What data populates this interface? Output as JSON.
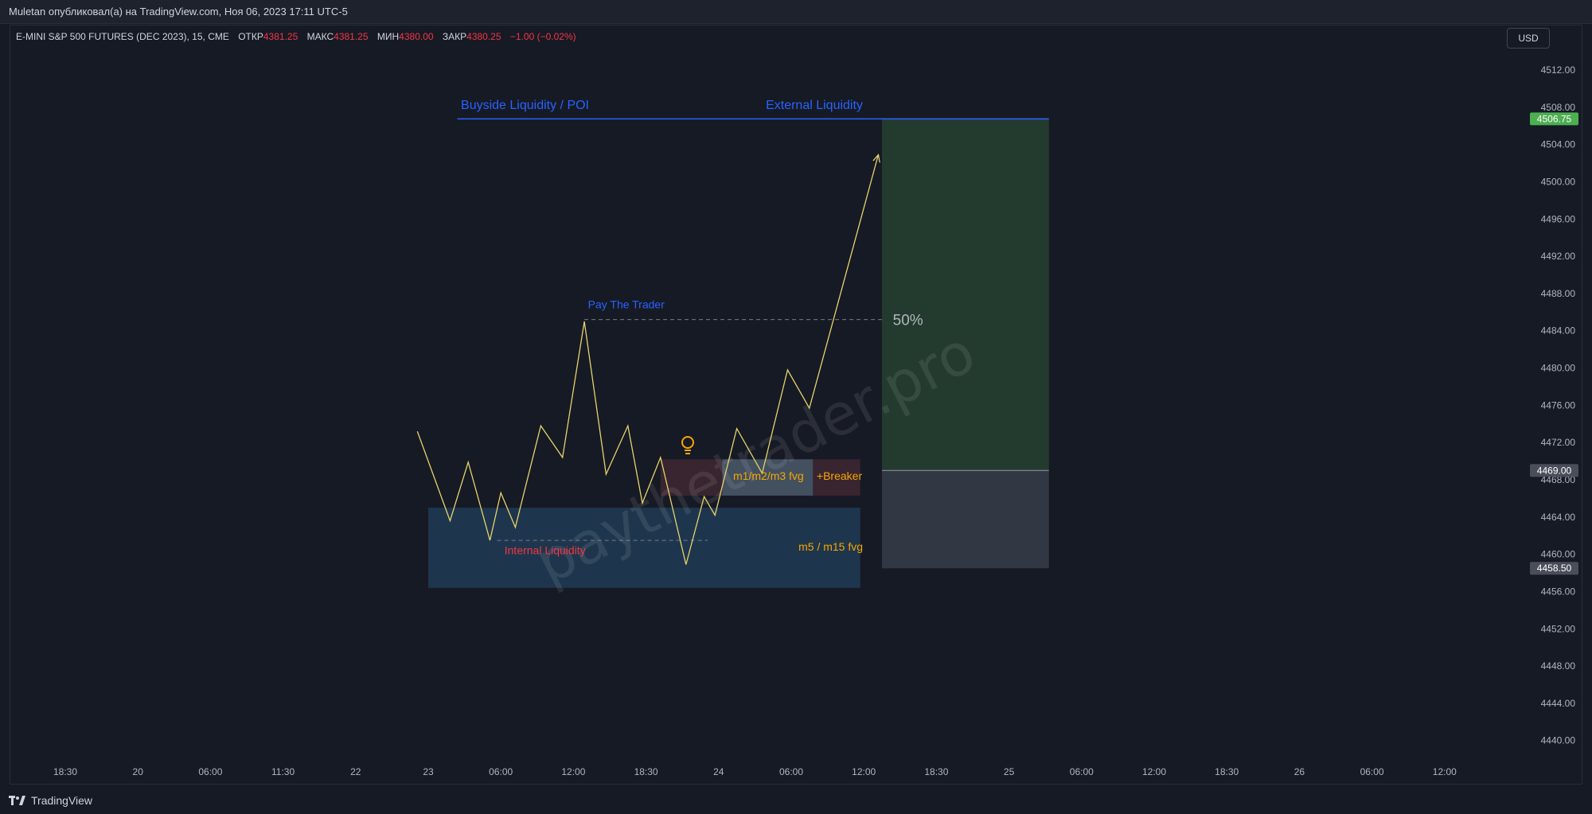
{
  "header": {
    "publisher_line": "Muletan опубликовал(а) на TradingView.com, Ноя 06, 2023 17:11 UTC-5"
  },
  "legend": {
    "symbol": "E-MINI S&P 500 FUTURES (DEC 2023), 15, CME",
    "open_label": "ОТКР",
    "open_value": "4381.25",
    "high_label": "МАКС",
    "high_value": "4381.25",
    "low_label": "МИН",
    "low_value": "4380.00",
    "close_label": "ЗАКР",
    "close_value": "4380.25",
    "change": "−1.00 (−0.02%)"
  },
  "currency_button": "USD",
  "footer": {
    "brand": "TradingView"
  },
  "watermark": "paythetrader.pro",
  "colors": {
    "background": "#161a25",
    "price_line": "#e6d36b",
    "down_value": "#f23645",
    "annotation_blue": "#2962ff",
    "annotation_orange": "#f7a600",
    "target_zone": "#233b2f",
    "stop_zone": "#323744",
    "fvg_zone": "#1f3a52"
  },
  "chart_data": {
    "type": "line",
    "x_ticks": [
      "18:30",
      "20",
      "06:00",
      "11:30",
      "22",
      "23",
      "06:00",
      "12:00",
      "18:30",
      "24",
      "06:00",
      "12:00",
      "18:30",
      "25",
      "06:00",
      "12:00",
      "18:30",
      "26",
      "06:00",
      "12:00"
    ],
    "y_ticks": [
      4512.0,
      4508.0,
      4504.0,
      4500.0,
      4496.0,
      4492.0,
      4488.0,
      4484.0,
      4480.0,
      4476.0,
      4472.0,
      4468.0,
      4464.0,
      4460.0,
      4456.0,
      4452.0,
      4448.0,
      4444.0,
      4440.0
    ],
    "ylim": [
      4437.5,
      4515.5
    ],
    "price_labels": [
      {
        "value": 4506.75,
        "text": "4506.75",
        "color": "#4caf50"
      },
      {
        "value": 4469.0,
        "text": "4469.00",
        "color": "#4a4e5a"
      },
      {
        "value": 4458.5,
        "text": "4458.50",
        "color": "#4a4e5a"
      }
    ],
    "series": [
      {
        "x_units": "x-axis tick index",
        "points": [
          [
            4.85,
            4473.2
          ],
          [
            5.3,
            4463.6
          ],
          [
            5.55,
            4469.9
          ],
          [
            5.85,
            4461.5
          ],
          [
            6.0,
            4466.6
          ],
          [
            6.2,
            4462.9
          ],
          [
            6.55,
            4473.8
          ],
          [
            6.85,
            4470.4
          ],
          [
            7.15,
            4485.0
          ],
          [
            7.45,
            4468.6
          ],
          [
            7.75,
            4473.8
          ],
          [
            7.95,
            4465.5
          ],
          [
            8.2,
            4470.4
          ],
          [
            8.55,
            4458.9
          ],
          [
            8.8,
            4466.2
          ],
          [
            8.95,
            4464.2
          ],
          [
            9.25,
            4473.5
          ],
          [
            9.6,
            4468.7
          ],
          [
            9.95,
            4479.8
          ],
          [
            10.25,
            4475.7
          ],
          [
            11.2,
            4502.9
          ]
        ]
      }
    ],
    "zones": [
      {
        "name": "m5-m15-fvg",
        "x": [
          5.0,
          10.95
        ],
        "y": [
          4456.4,
          4465.0
        ]
      },
      {
        "name": "m1-m2-m3-fvg-dark",
        "x": [
          8.2,
          9.05
        ],
        "y": [
          4466.3,
          4470.2
        ]
      },
      {
        "name": "m1-m2-m3-fvg",
        "x": [
          9.05,
          10.3
        ],
        "y": [
          4466.3,
          4470.2
        ]
      },
      {
        "name": "breaker",
        "x": [
          10.3,
          10.95
        ],
        "y": [
          4466.3,
          4470.2
        ]
      },
      {
        "name": "target",
        "x": [
          11.25,
          13.55
        ],
        "y": [
          4469.0,
          4506.75
        ]
      },
      {
        "name": "stop",
        "x": [
          11.25,
          13.55
        ],
        "y": [
          4458.5,
          4469.0
        ]
      }
    ],
    "lines": [
      {
        "name": "buyside-liquidity-line",
        "x": [
          5.4,
          13.55
        ],
        "y": 4506.75,
        "style": "solid",
        "color": "#2962ff"
      },
      {
        "name": "pay-the-trader-line",
        "x": [
          7.15,
          11.25
        ],
        "y": 4485.2,
        "style": "dashed",
        "color": "#787b86"
      },
      {
        "name": "internal-liquidity-line",
        "x": [
          5.95,
          8.85
        ],
        "y": 4461.5,
        "style": "dashed",
        "color": "#787b86"
      }
    ],
    "annotations": [
      {
        "text": "Buyside Liquidity / POI",
        "x": 5.45,
        "y": 4507.8,
        "color": "#2962ff"
      },
      {
        "text": "External Liquidity",
        "x": 9.65,
        "y": 4507.8,
        "color": "#2962ff"
      },
      {
        "text": "Pay The Trader",
        "x": 7.2,
        "y": 4486.4,
        "color": "#2962ff"
      },
      {
        "text": "50%",
        "x": 11.4,
        "y": 4484.6,
        "color": "#b2b5be"
      },
      {
        "text": "m1/m2/m3 fvg",
        "x": 9.2,
        "y": 4468.0,
        "color": "#f7a600"
      },
      {
        "text": "+Breaker",
        "x": 10.35,
        "y": 4468.0,
        "color": "#f7a600"
      },
      {
        "text": "m5 / m15 fvg",
        "x": 10.1,
        "y": 4460.4,
        "color": "#f7a600"
      },
      {
        "text": "Internal Liquidity",
        "x": 6.05,
        "y": 4460.0,
        "color": "#f23645"
      }
    ]
  }
}
